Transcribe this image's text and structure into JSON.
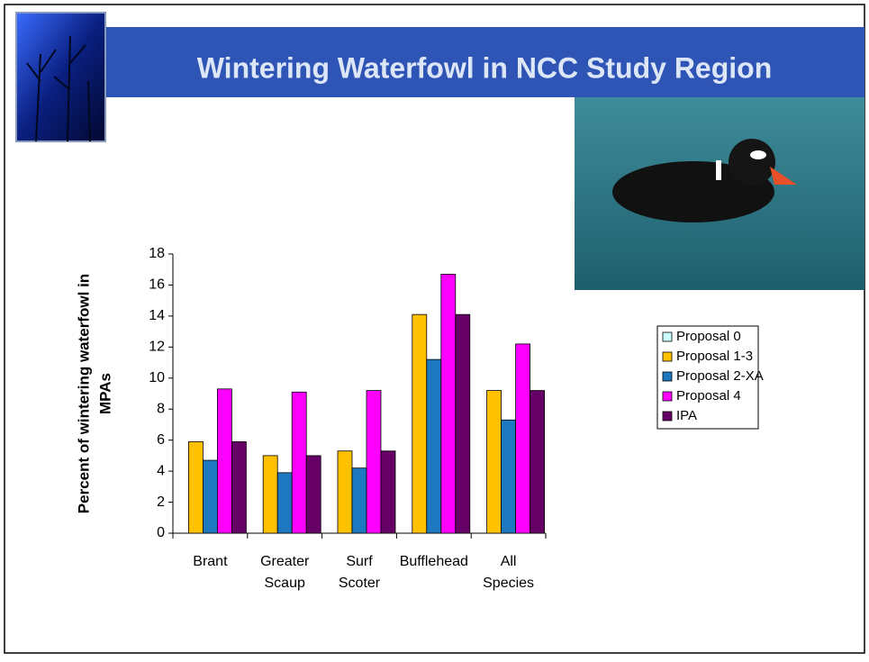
{
  "chart_data": {
    "type": "bar",
    "title": "Wintering Waterfowl in NCC Study Region",
    "ylabel": [
      "Percent of wintering waterfowl in",
      "MPAs"
    ],
    "categories": [
      [
        "Brant"
      ],
      [
        "Greater",
        "Scaup"
      ],
      [
        "Surf",
        "Scoter"
      ],
      [
        "Bufflehead"
      ],
      [
        "All",
        "Species"
      ]
    ],
    "series": [
      {
        "name": "Proposal 0",
        "color": "#ccffff",
        "values": [
          0,
          0,
          0,
          0,
          0
        ]
      },
      {
        "name": "Proposal 1-3",
        "color": "#ffc000",
        "values": [
          5.9,
          5.0,
          5.3,
          14.1,
          9.2
        ]
      },
      {
        "name": "Proposal 2-XA",
        "color": "#1e78c0",
        "values": [
          4.7,
          3.9,
          4.2,
          11.2,
          7.3
        ]
      },
      {
        "name": "Proposal 4",
        "color": "#ff00ff",
        "values": [
          9.3,
          9.1,
          9.2,
          16.7,
          12.2
        ]
      },
      {
        "name": "IPA",
        "color": "#660066",
        "values": [
          5.9,
          5.0,
          5.3,
          14.1,
          9.2
        ]
      }
    ],
    "ylim": [
      0,
      18
    ],
    "yticks": [
      0,
      2,
      4,
      6,
      8,
      10,
      12,
      14,
      16,
      18
    ],
    "grid": false
  }
}
